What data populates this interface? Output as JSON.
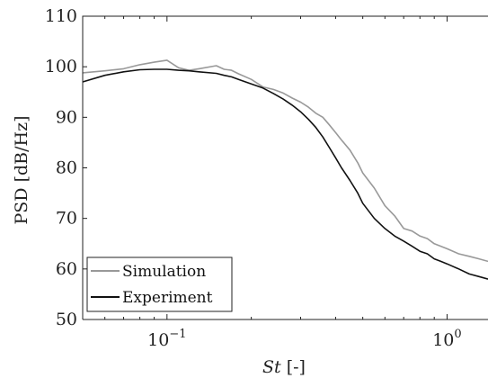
{
  "chart_data": {
    "type": "line",
    "title": "",
    "xlabel": {
      "italic": "St",
      "unit": " [-]"
    },
    "ylabel": "PSD [dB/Hz]",
    "xscale": "log",
    "xlim": [
      0.05,
      1.4
    ],
    "ylim": [
      50,
      110
    ],
    "yticks": [
      50,
      60,
      70,
      80,
      90,
      100,
      110
    ],
    "ytick_labels": [
      "50",
      "60",
      "70",
      "80",
      "90",
      "100",
      "110"
    ],
    "xticks": [
      0.1,
      1.0
    ],
    "xtick_labels": [
      {
        "base": "10",
        "exp": "−1"
      },
      {
        "base": "10",
        "exp": "0"
      }
    ],
    "grid": false,
    "legend_position": "bottom-left",
    "series": [
      {
        "name": "Simulation",
        "color": "#999999",
        "x": [
          0.05,
          0.06,
          0.07,
          0.08,
          0.09,
          0.1,
          0.11,
          0.12,
          0.13,
          0.15,
          0.16,
          0.17,
          0.18,
          0.2,
          0.22,
          0.24,
          0.26,
          0.28,
          0.3,
          0.32,
          0.34,
          0.36,
          0.38,
          0.4,
          0.42,
          0.45,
          0.48,
          0.5,
          0.55,
          0.6,
          0.65,
          0.7,
          0.75,
          0.8,
          0.85,
          0.9,
          0.95,
          1.0,
          1.1,
          1.2,
          1.3,
          1.4
        ],
        "y": [
          98.8,
          99.2,
          99.6,
          100.4,
          100.9,
          101.3,
          99.8,
          99.3,
          99.6,
          100.2,
          99.5,
          99.3,
          98.6,
          97.5,
          96.0,
          95.5,
          94.8,
          93.8,
          93.0,
          92.0,
          90.8,
          90.0,
          88.5,
          87.0,
          85.5,
          83.5,
          81.0,
          79.0,
          76.0,
          72.5,
          70.5,
          68.0,
          67.5,
          66.5,
          66.0,
          65.0,
          64.5,
          64.0,
          63.0,
          62.5,
          62.0,
          61.5
        ]
      },
      {
        "name": "Experiment",
        "color": "#111111",
        "x": [
          0.05,
          0.06,
          0.07,
          0.08,
          0.09,
          0.1,
          0.11,
          0.12,
          0.13,
          0.15,
          0.16,
          0.17,
          0.18,
          0.2,
          0.22,
          0.24,
          0.26,
          0.28,
          0.3,
          0.32,
          0.34,
          0.36,
          0.38,
          0.4,
          0.42,
          0.45,
          0.48,
          0.5,
          0.55,
          0.6,
          0.65,
          0.7,
          0.75,
          0.8,
          0.85,
          0.9,
          0.95,
          1.0,
          1.1,
          1.2,
          1.3,
          1.4
        ],
        "y": [
          97.0,
          98.3,
          99.0,
          99.4,
          99.5,
          99.5,
          99.3,
          99.2,
          99.0,
          98.7,
          98.3,
          98.0,
          97.5,
          96.6,
          95.8,
          94.7,
          93.6,
          92.4,
          91.1,
          89.6,
          88.0,
          86.1,
          84.0,
          82.0,
          80.0,
          77.5,
          75.0,
          73.0,
          70.0,
          68.0,
          66.5,
          65.5,
          64.5,
          63.5,
          63.0,
          62.0,
          61.5,
          61.0,
          60.0,
          59.0,
          58.5,
          58.0
        ]
      }
    ]
  }
}
